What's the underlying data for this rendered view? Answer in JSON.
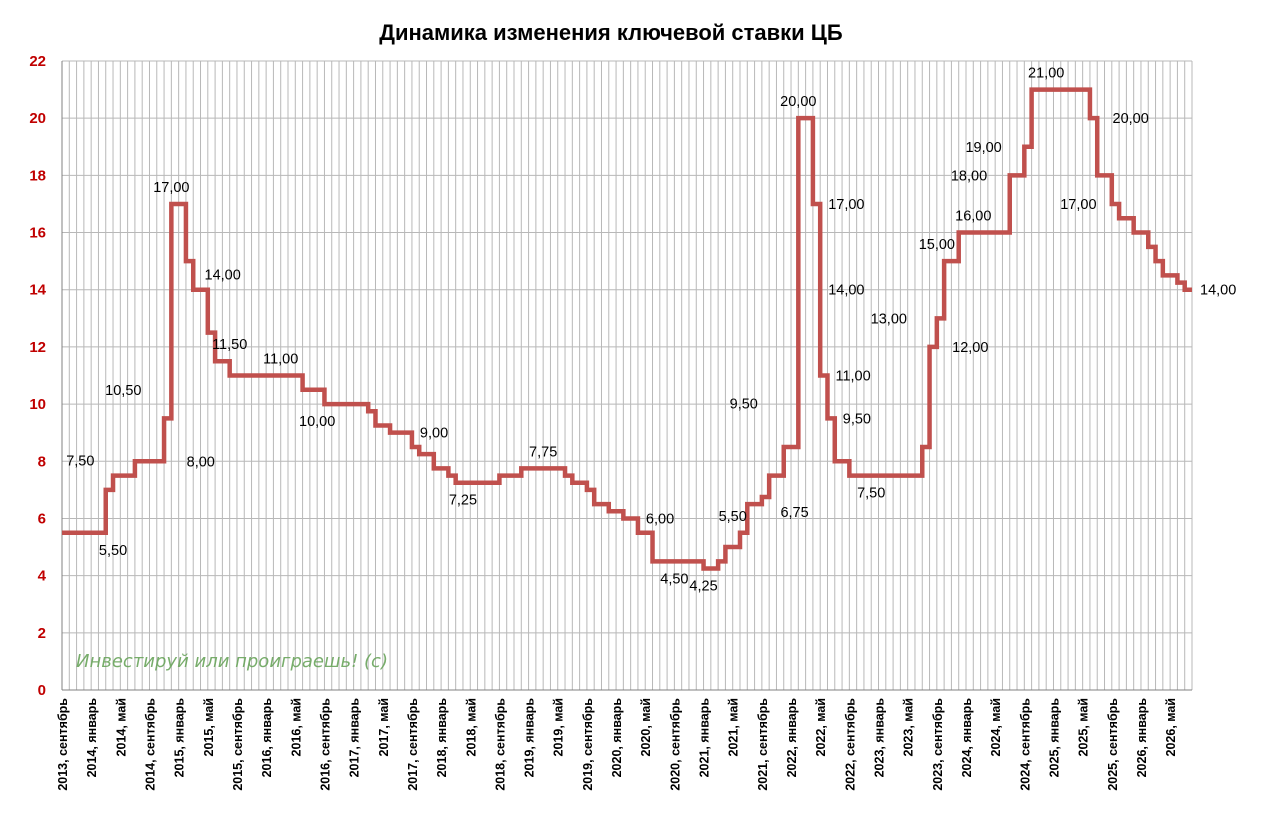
{
  "chart_data": {
    "type": "line",
    "step": true,
    "title": "Динамика изменения ключевой ставки ЦБ",
    "xlabel": "",
    "ylabel": "",
    "ylim": [
      0,
      22
    ],
    "yticks": [
      0,
      2,
      4,
      6,
      8,
      10,
      12,
      14,
      16,
      18,
      20,
      22
    ],
    "grid": true,
    "x_tick_labels": [
      "2013, сентябрь",
      "2014, январь",
      "2014, май",
      "2014, сентябрь",
      "2015, январь",
      "2015, май",
      "2015, сентябрь",
      "2016, январь",
      "2016, май",
      "2016, сентябрь",
      "2017, январь",
      "2017, май",
      "2017, сентябрь",
      "2018, январь",
      "2018, май",
      "2018, сентябрь",
      "2019, январь",
      "2019, май",
      "2019, сентябрь",
      "2020, январь",
      "2020, май",
      "2020, сентябрь",
      "2021, январь",
      "2021, май",
      "2021, сентябрь",
      "2022, январь",
      "2022, май",
      "2022, сентябрь",
      "2023, январь",
      "2023, май",
      "2023, сентябрь",
      "2024, январь",
      "2024, май",
      "2024, сентябрь",
      "2025, январь",
      "2025, май",
      "2025, сентябрь",
      "2026, январь",
      "2026, май"
    ],
    "series": [
      {
        "name": "",
        "color": "#c0504d",
        "steps": [
          {
            "x": "2013-09",
            "y": 5.5
          },
          {
            "x": "2014-03",
            "y": 7.0
          },
          {
            "x": "2014-04",
            "y": 7.5
          },
          {
            "x": "2014-07",
            "y": 8.0
          },
          {
            "x": "2014-11",
            "y": 9.5
          },
          {
            "x": "2014-12",
            "y": 17.0
          },
          {
            "x": "2015-02",
            "y": 15.0
          },
          {
            "x": "2015-03",
            "y": 14.0
          },
          {
            "x": "2015-05",
            "y": 12.5
          },
          {
            "x": "2015-06",
            "y": 11.5
          },
          {
            "x": "2015-08",
            "y": 11.0
          },
          {
            "x": "2016-06",
            "y": 10.5
          },
          {
            "x": "2016-09",
            "y": 10.0
          },
          {
            "x": "2017-03",
            "y": 9.75
          },
          {
            "x": "2017-04",
            "y": 9.25
          },
          {
            "x": "2017-06",
            "y": 9.0
          },
          {
            "x": "2017-09",
            "y": 8.5
          },
          {
            "x": "2017-10",
            "y": 8.25
          },
          {
            "x": "2017-12",
            "y": 7.75
          },
          {
            "x": "2018-02",
            "y": 7.5
          },
          {
            "x": "2018-03",
            "y": 7.25
          },
          {
            "x": "2018-09",
            "y": 7.5
          },
          {
            "x": "2018-12",
            "y": 7.75
          },
          {
            "x": "2019-06",
            "y": 7.5
          },
          {
            "x": "2019-07",
            "y": 7.25
          },
          {
            "x": "2019-09",
            "y": 7.0
          },
          {
            "x": "2019-10",
            "y": 6.5
          },
          {
            "x": "2019-12",
            "y": 6.25
          },
          {
            "x": "2020-02",
            "y": 6.0
          },
          {
            "x": "2020-04",
            "y": 5.5
          },
          {
            "x": "2020-06",
            "y": 4.5
          },
          {
            "x": "2020-12",
            "y": 4.5
          },
          {
            "x": "2021-01",
            "y": 4.25
          },
          {
            "x": "2021-03",
            "y": 4.5
          },
          {
            "x": "2021-04",
            "y": 5.0
          },
          {
            "x": "2021-06",
            "y": 5.5
          },
          {
            "x": "2021-07",
            "y": 6.5
          },
          {
            "x": "2021-09",
            "y": 6.75
          },
          {
            "x": "2021-10",
            "y": 7.5
          },
          {
            "x": "2021-12",
            "y": 8.5
          },
          {
            "x": "2022-02",
            "y": 20.0
          },
          {
            "x": "2022-04",
            "y": 17.0
          },
          {
            "x": "2022-05",
            "y": 14.0
          },
          {
            "x": "2022-05",
            "y": 11.0
          },
          {
            "x": "2022-06",
            "y": 9.5
          },
          {
            "x": "2022-07",
            "y": 8.0
          },
          {
            "x": "2022-09",
            "y": 7.5
          },
          {
            "x": "2023-07",
            "y": 8.5
          },
          {
            "x": "2023-08",
            "y": 12.0
          },
          {
            "x": "2023-09",
            "y": 13.0
          },
          {
            "x": "2023-10",
            "y": 15.0
          },
          {
            "x": "2023-12",
            "y": 16.0
          },
          {
            "x": "2024-07",
            "y": 18.0
          },
          {
            "x": "2024-09",
            "y": 19.0
          },
          {
            "x": "2024-10",
            "y": 21.0
          },
          {
            "x": "2025-06",
            "y": 20.0
          },
          {
            "x": "2025-07",
            "y": 18.0
          },
          {
            "x": "2025-09",
            "y": 17.0
          },
          {
            "x": "2025-10",
            "y": 16.5
          },
          {
            "x": "2025-12",
            "y": 16.0
          },
          {
            "x": "2026-02",
            "y": 15.5
          },
          {
            "x": "2026-03",
            "y": 15.0
          },
          {
            "x": "2026-04",
            "y": 14.5
          },
          {
            "x": "2026-06",
            "y": 14.25
          },
          {
            "x": "2026-07",
            "y": 14.0
          },
          {
            "x": "2026-08",
            "y": 14.0
          }
        ]
      }
    ],
    "annotations": [
      {
        "text": "7,50",
        "x": "2014-02",
        "y": 7.5,
        "anchor": "above-left"
      },
      {
        "text": "5,50",
        "x": "2014-04",
        "y": 5.5,
        "anchor": "below"
      },
      {
        "text": "10,50",
        "x": "2014-09",
        "y": 10.5,
        "anchor": "left"
      },
      {
        "text": "8,00",
        "x": "2015-01",
        "y": 8.0,
        "anchor": "right"
      },
      {
        "text": "17,00",
        "x": "2014-12",
        "y": 17.0,
        "anchor": "above"
      },
      {
        "text": "14,00",
        "x": "2015-04",
        "y": 14.0,
        "anchor": "above-right"
      },
      {
        "text": "11,50",
        "x": "2015-08",
        "y": 11.5,
        "anchor": "above"
      },
      {
        "text": "11,00",
        "x": "2016-03",
        "y": 11.0,
        "anchor": "above"
      },
      {
        "text": "10,00",
        "x": "2016-08",
        "y": 10.0,
        "anchor": "below"
      },
      {
        "text": "9,00",
        "x": "2017-09",
        "y": 9.0,
        "anchor": "right"
      },
      {
        "text": "7,25",
        "x": "2018-04",
        "y": 7.25,
        "anchor": "below"
      },
      {
        "text": "7,75",
        "x": "2019-03",
        "y": 7.75,
        "anchor": "above"
      },
      {
        "text": "6,00",
        "x": "2020-04",
        "y": 6.0,
        "anchor": "right"
      },
      {
        "text": "4,50",
        "x": "2020-09",
        "y": 4.5,
        "anchor": "below"
      },
      {
        "text": "4,25",
        "x": "2021-01",
        "y": 4.25,
        "anchor": "below"
      },
      {
        "text": "5,50",
        "x": "2021-05",
        "y": 5.5,
        "anchor": "above"
      },
      {
        "text": "9,50",
        "x": "2021-09",
        "y": 9.5,
        "anchor": "above-left"
      },
      {
        "text": "6,75",
        "x": "2021-11",
        "y": 6.75,
        "anchor": "below-right"
      },
      {
        "text": "20,00",
        "x": "2022-02",
        "y": 20.0,
        "anchor": "above"
      },
      {
        "text": "17,00",
        "x": "2022-05",
        "y": 17.0,
        "anchor": "right"
      },
      {
        "text": "14,00",
        "x": "2022-05",
        "y": 14.0,
        "anchor": "right"
      },
      {
        "text": "11,00",
        "x": "2022-06",
        "y": 11.0,
        "anchor": "right"
      },
      {
        "text": "9,50",
        "x": "2022-07",
        "y": 9.5,
        "anchor": "right"
      },
      {
        "text": "7,50",
        "x": "2022-12",
        "y": 7.5,
        "anchor": "below"
      },
      {
        "text": "13,00",
        "x": "2023-06",
        "y": 13.0,
        "anchor": "left"
      },
      {
        "text": "12,00",
        "x": "2023-10",
        "y": 12.0,
        "anchor": "right"
      },
      {
        "text": "15,00",
        "x": "2023-09",
        "y": 15.0,
        "anchor": "above"
      },
      {
        "text": "16,00",
        "x": "2024-02",
        "y": 16.0,
        "anchor": "above"
      },
      {
        "text": "18,00",
        "x": "2024-05",
        "y": 18.0,
        "anchor": "left"
      },
      {
        "text": "19,00",
        "x": "2024-07",
        "y": 19.0,
        "anchor": "left"
      },
      {
        "text": "21,00",
        "x": "2024-12",
        "y": 21.0,
        "anchor": "above"
      },
      {
        "text": "20,00",
        "x": "2025-08",
        "y": 20.0,
        "anchor": "right"
      },
      {
        "text": "17,00",
        "x": "2025-08",
        "y": 17.0,
        "anchor": "left"
      },
      {
        "text": "14,00",
        "x": "2026-08",
        "y": 14.0,
        "anchor": "right"
      }
    ],
    "watermark": "Инвестируй или проиграешь! (с)"
  }
}
